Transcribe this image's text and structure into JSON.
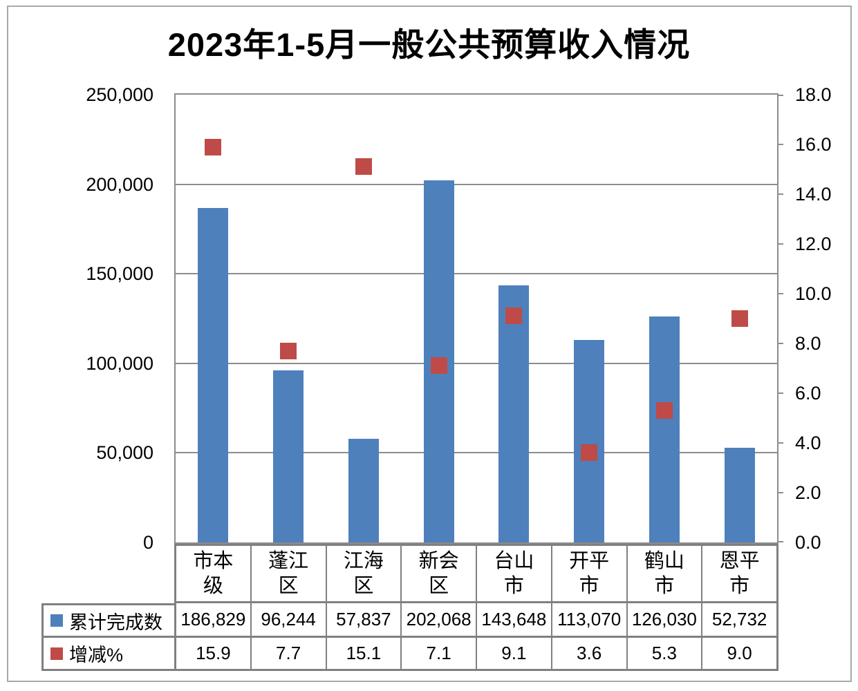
{
  "title": "2023年1-5月一般公共预算收入情况",
  "chart_data": {
    "type": "bar",
    "subtype": "combo: bars (left axis) + square scatter markers (right axis)",
    "title": "2023年1-5月一般公共预算收入情况",
    "categories": [
      "市本级",
      "蓬江区",
      "江海区",
      "新会区",
      "台山市",
      "开平市",
      "鹤山市",
      "恩平市"
    ],
    "categories_display": [
      [
        "市本",
        "级"
      ],
      [
        "蓬江",
        "区"
      ],
      [
        "江海",
        "区"
      ],
      [
        "新会",
        "区"
      ],
      [
        "台山",
        "市"
      ],
      [
        "开平",
        "市"
      ],
      [
        "鹤山",
        "市"
      ],
      [
        "恩平",
        "市"
      ]
    ],
    "series": [
      {
        "name": "累计完成数",
        "type": "bar",
        "axis": "left",
        "color": "#4E80BC",
        "values": [
          186829,
          96244,
          57837,
          202068,
          143648,
          113070,
          126030,
          52732
        ],
        "labels": [
          "186,829",
          "96,244",
          "57,837",
          "202,068",
          "143,648",
          "113,070",
          "126,030",
          "52,732"
        ]
      },
      {
        "name": "增减%",
        "type": "scatter",
        "marker": "square",
        "axis": "right",
        "color": "#BE4B48",
        "values": [
          15.9,
          7.7,
          15.1,
          7.1,
          9.1,
          3.6,
          5.3,
          9.0
        ],
        "labels": [
          "15.9",
          "7.7",
          "15.1",
          "7.1",
          "9.1",
          "3.6",
          "5.3",
          "9.0"
        ]
      }
    ],
    "left_axis": {
      "min": 0,
      "max": 250000,
      "step": 50000,
      "ticks": [
        "0",
        "50,000",
        "100,000",
        "150,000",
        "200,000",
        "250,000"
      ]
    },
    "right_axis": {
      "min": 0,
      "max": 18,
      "step": 2,
      "ticks": [
        "0.0",
        "2.0",
        "4.0",
        "6.0",
        "8.0",
        "10.0",
        "12.0",
        "14.0",
        "16.0",
        "18.0"
      ]
    },
    "grid": "horizontal major gridlines at left-axis 50,000 steps",
    "legend_position": "data table header column below chart"
  },
  "colors": {
    "bar": "#4E80BC",
    "marker": "#BE4B48",
    "gridline": "#8C8C8C",
    "plot_border": "#8C8C8C",
    "table_border": "#808080",
    "frame": "#A8A8A8",
    "background": "#FFFFFF",
    "text": "#000000"
  }
}
